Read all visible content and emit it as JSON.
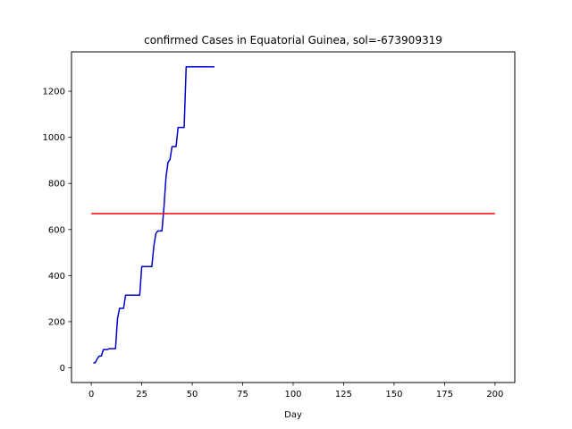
{
  "chart_data": {
    "type": "line",
    "title": "confirmed Cases in Equatorial Guinea, sol=-673909319",
    "xlabel": "Day",
    "ylabel": "",
    "xlim": [
      -9.8,
      209.8
    ],
    "ylim": [
      -64,
      1371
    ],
    "xticks": [
      0,
      25,
      50,
      75,
      100,
      125,
      150,
      175,
      200
    ],
    "yticks": [
      0,
      200,
      400,
      600,
      800,
      1000,
      1200
    ],
    "grid": false,
    "series": [
      {
        "color": "#0000cc",
        "x": [
          1,
          2,
          3,
          4,
          5,
          6,
          7,
          8,
          9,
          10,
          11,
          12,
          13,
          14,
          15,
          16,
          17,
          18,
          19,
          20,
          21,
          22,
          23,
          24,
          25,
          26,
          27,
          28,
          29,
          30,
          31,
          32,
          33,
          34,
          35,
          36,
          37,
          38,
          39,
          40,
          41,
          42,
          43,
          44,
          45,
          46,
          47,
          48,
          49,
          50,
          51,
          52,
          53,
          54,
          55,
          56,
          57,
          58,
          59,
          60,
          61
        ],
        "y": [
          22,
          22,
          40,
          51,
          51,
          79,
          79,
          79,
          83,
          83,
          83,
          83,
          214,
          258,
          258,
          258,
          315,
          315,
          315,
          315,
          315,
          315,
          315,
          315,
          439,
          439,
          439,
          439,
          439,
          439,
          528,
          583,
          594,
          594,
          594,
          696,
          825,
          892,
          904,
          960,
          960,
          960,
          1043,
          1043,
          1043,
          1043,
          1306,
          1306,
          1306,
          1306,
          1306,
          1306,
          1306,
          1306,
          1306,
          1306,
          1306,
          1306,
          1306,
          1306,
          1306
        ]
      },
      {
        "color": "#ff0000",
        "x": [
          0,
          200
        ],
        "y": [
          669,
          669
        ]
      }
    ]
  }
}
